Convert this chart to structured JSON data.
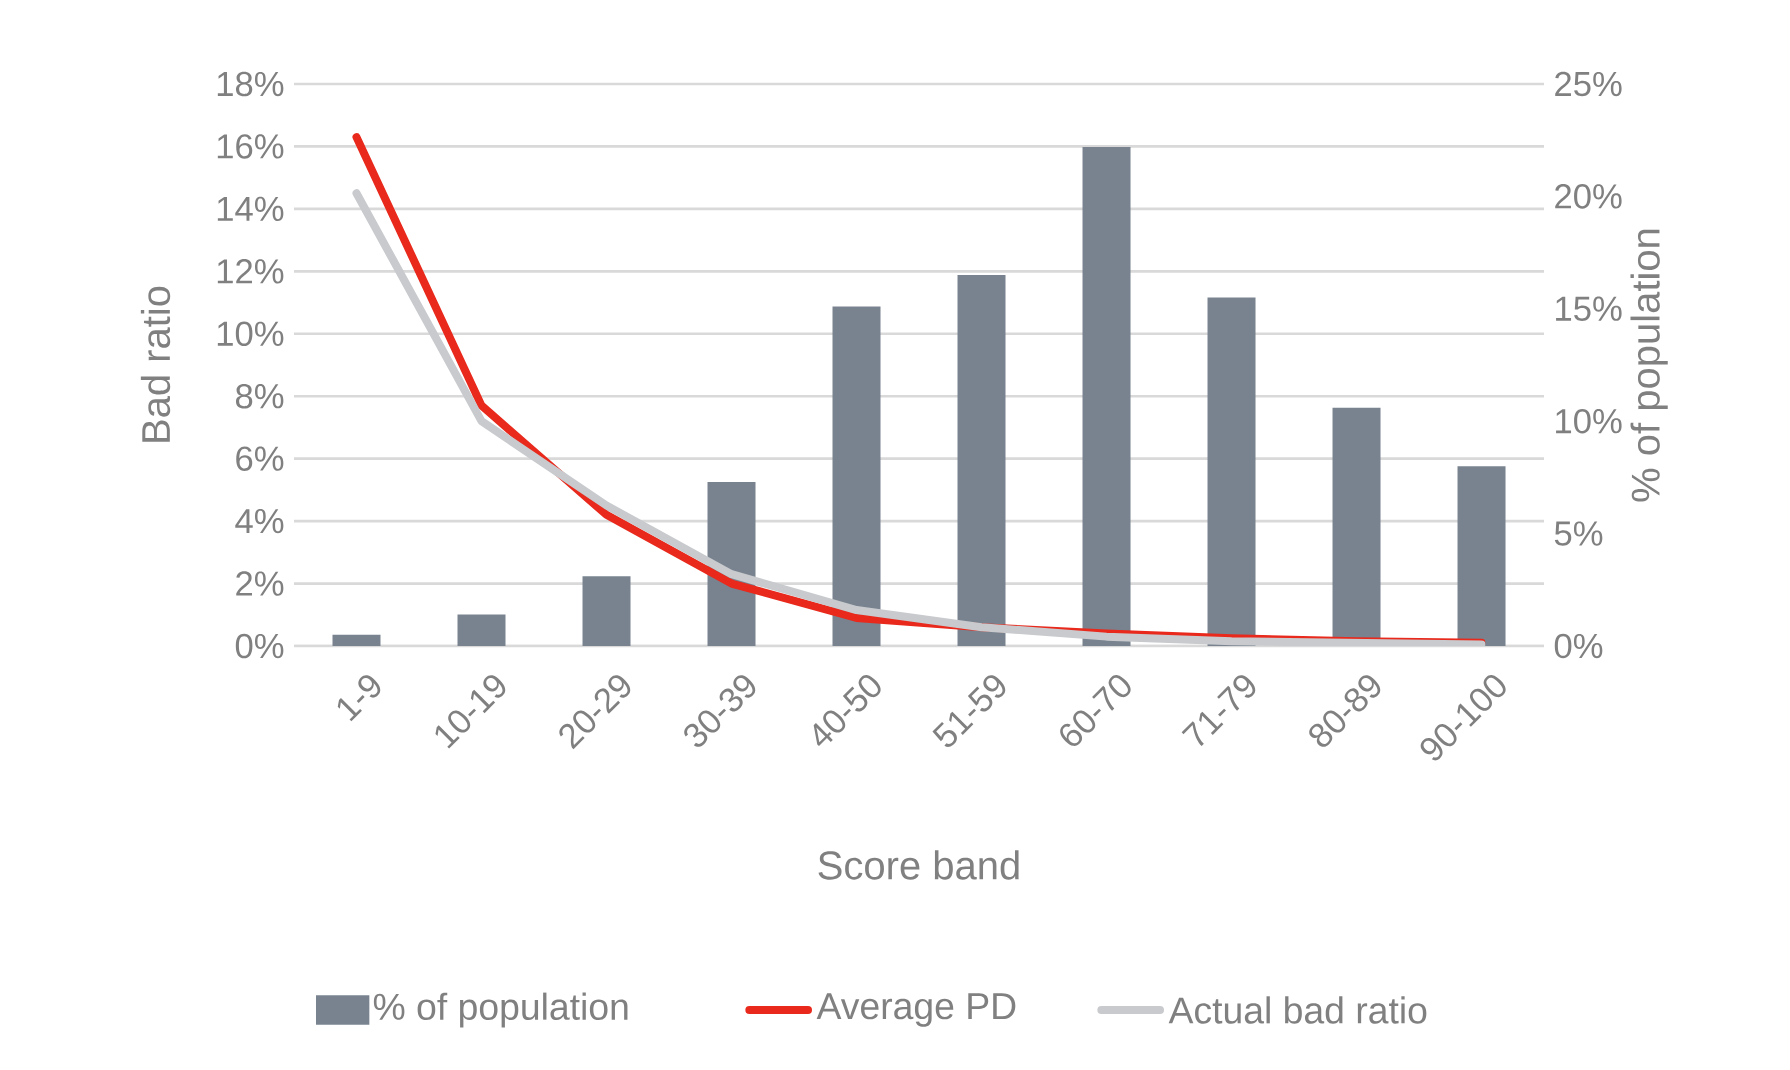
{
  "chart_data": {
    "type": "bar",
    "xlabel": "Score band",
    "ylabel": "Bad ratio",
    "y2label": "% of population",
    "categories": [
      "1-9",
      "10-19",
      "20-29",
      "30-39",
      "40-50",
      "51-59",
      "60-70",
      "71-79",
      "80-89",
      "90-100"
    ],
    "series": [
      {
        "name": "% of population",
        "axis": "y2",
        "color": "#78838f",
        "values": [
          0.5,
          1.4,
          3.1,
          7.3,
          15.1,
          16.5,
          22.2,
          15.5,
          10.6,
          8.0
        ]
      },
      {
        "name": "Average PD",
        "type": "line",
        "color": "#e8291c",
        "values": [
          16.3,
          7.7,
          4.2,
          2.0,
          0.9,
          0.6,
          0.4,
          0.25,
          0.15,
          0.1
        ]
      },
      {
        "name": "Actual bad ratio",
        "type": "line",
        "color": "#c8cacd",
        "values": [
          14.5,
          7.2,
          4.5,
          2.3,
          1.15,
          0.6,
          0.3,
          0.15,
          0.1,
          0.05
        ]
      }
    ],
    "ylim": [
      0,
      18
    ],
    "yticks": [
      {
        "value": 0,
        "label": "0%"
      },
      {
        "value": 2,
        "label": "2%"
      },
      {
        "value": 4,
        "label": "4%"
      },
      {
        "value": 6,
        "label": "6%"
      },
      {
        "value": 8,
        "label": "8%"
      },
      {
        "value": 10,
        "label": "10%"
      },
      {
        "value": 12,
        "label": "12%"
      },
      {
        "value": 14,
        "label": "14%"
      },
      {
        "value": 16,
        "label": "16%"
      },
      {
        "value": 18,
        "label": "18%"
      }
    ],
    "y2lim": [
      0,
      25
    ],
    "y2ticks": [
      {
        "value": 0,
        "label": "0%"
      },
      {
        "value": 5,
        "label": "5%"
      },
      {
        "value": 10,
        "label": "10%"
      },
      {
        "value": 15,
        "label": "15%"
      },
      {
        "value": 20,
        "label": "20%"
      },
      {
        "value": 25,
        "label": "25%"
      }
    ],
    "grid": "y",
    "legend": "bottom",
    "marker": "none",
    "line_style": "solid"
  }
}
